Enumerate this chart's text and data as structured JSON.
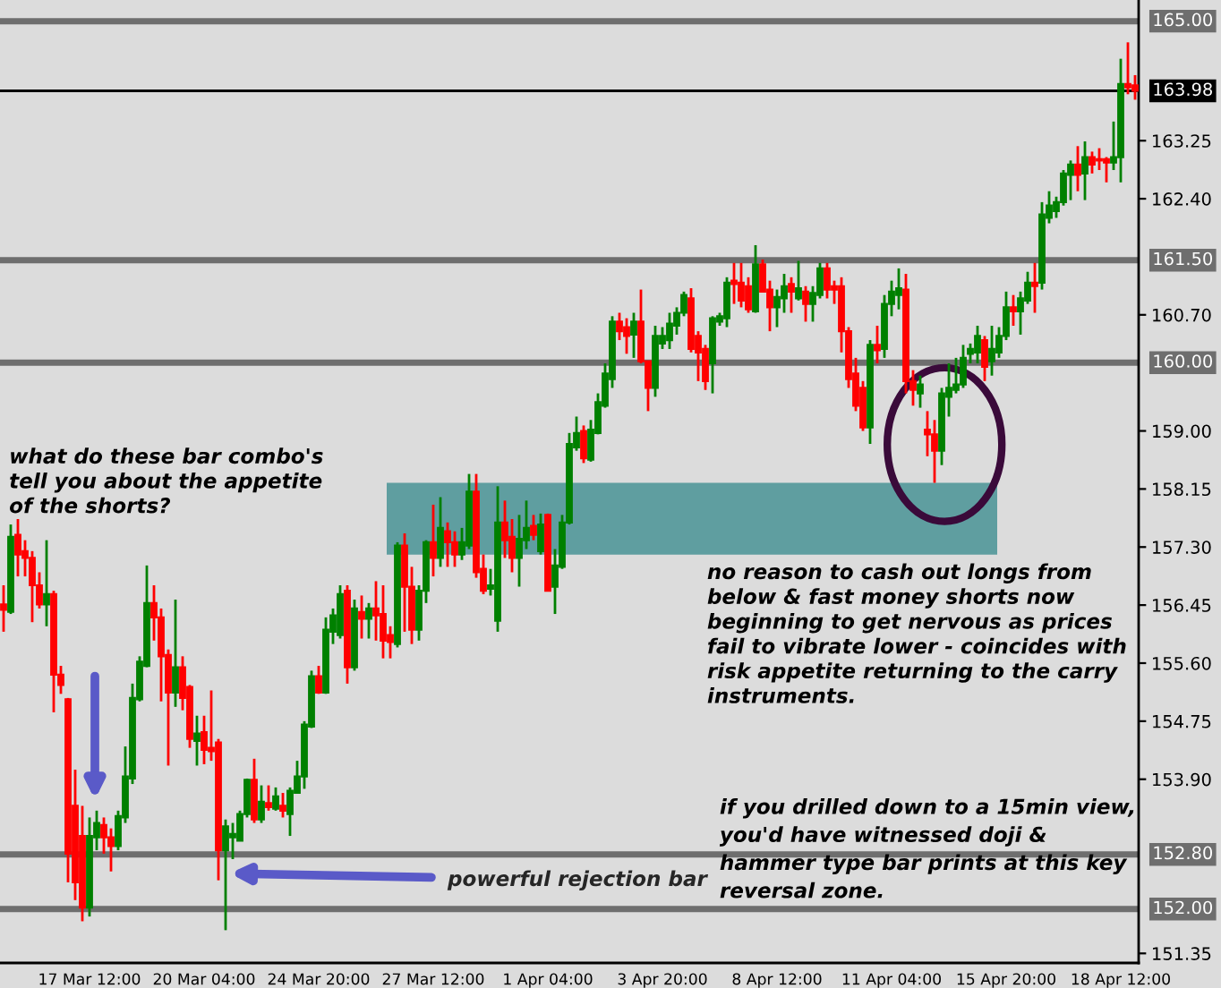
{
  "chart_data": {
    "type": "candlestick",
    "categories": [
      null,
      null,
      null,
      null,
      null,
      null,
      null,
      null,
      null,
      null,
      null,
      null,
      "17 Mar 12:00",
      null,
      null,
      null,
      null,
      null,
      null,
      null,
      null,
      null,
      null,
      null,
      null,
      null,
      null,
      null,
      "20 Mar 04:00",
      null,
      null,
      null,
      null,
      null,
      null,
      null,
      null,
      null,
      null,
      null,
      null,
      null,
      null,
      null,
      "24 Mar 20:00",
      null,
      null,
      null,
      null,
      null,
      null,
      null,
      null,
      null,
      null,
      null,
      null,
      null,
      null,
      null,
      "27 Mar 12:00",
      null,
      null,
      null,
      null,
      null,
      null,
      null,
      null,
      null,
      null,
      null,
      null,
      null,
      null,
      null,
      "1 Apr 04:00",
      null,
      null,
      null,
      null,
      null,
      null,
      null,
      null,
      null,
      null,
      null,
      null,
      null,
      null,
      null,
      "3 Apr 20:00",
      null,
      null,
      null,
      null,
      null,
      null,
      null,
      null,
      null,
      null,
      null,
      null,
      null,
      null,
      null,
      "8 Apr 12:00",
      null,
      null,
      null,
      null,
      null,
      null,
      null,
      null,
      null,
      null,
      null,
      null,
      null,
      null,
      null,
      "11 Apr 04:00",
      null,
      null,
      null,
      null,
      null,
      null,
      null,
      null,
      null,
      null,
      null,
      null,
      null,
      null,
      null,
      "15 Apr 20:00",
      null,
      null,
      null,
      null,
      null,
      null,
      null,
      null,
      null,
      null,
      null,
      null,
      null,
      null,
      null,
      "18 Apr 12:00",
      null,
      null
    ],
    "ohlc": [
      [
        156.46,
        156.74,
        156.06,
        156.38
      ],
      [
        156.35,
        157.63,
        156.32,
        157.45
      ],
      [
        157.48,
        157.71,
        156.87,
        157.19
      ],
      [
        157.24,
        157.4,
        156.87,
        157.14
      ],
      [
        157.14,
        157.24,
        156.2,
        156.74
      ],
      [
        156.74,
        156.93,
        156.4,
        156.46
      ],
      [
        156.46,
        157.4,
        156.14,
        156.61
      ],
      [
        156.61,
        156.66,
        154.88,
        155.43
      ],
      [
        155.43,
        155.56,
        155.15,
        155.28
      ],
      [
        155.07,
        155.09,
        152.39,
        152.81
      ],
      [
        153.51,
        154.04,
        152.13,
        152.39
      ],
      [
        153.07,
        153.51,
        151.82,
        152.02
      ],
      [
        152.02,
        153.34,
        151.89,
        153.07
      ],
      [
        153.05,
        153.44,
        152.86,
        153.26
      ],
      [
        153.23,
        153.34,
        152.81,
        153.05
      ],
      [
        153.05,
        153.18,
        152.55,
        152.92
      ],
      [
        152.92,
        153.44,
        152.86,
        153.36
      ],
      [
        153.34,
        154.38,
        153.26,
        153.94
      ],
      [
        153.91,
        155.3,
        153.83,
        155.09
      ],
      [
        155.07,
        155.7,
        155.04,
        155.62
      ],
      [
        155.56,
        157.03,
        155.54,
        156.48
      ],
      [
        156.48,
        156.74,
        155.93,
        156.27
      ],
      [
        156.27,
        156.4,
        155.04,
        155.7
      ],
      [
        155.72,
        155.8,
        154.1,
        155.17
      ],
      [
        155.17,
        156.53,
        154.96,
        155.54
      ],
      [
        155.54,
        155.7,
        154.91,
        155.09
      ],
      [
        155.25,
        155.28,
        154.36,
        154.49
      ],
      [
        154.46,
        154.83,
        154.1,
        154.57
      ],
      [
        154.59,
        154.83,
        154.12,
        154.33
      ],
      [
        154.36,
        155.2,
        154.17,
        154.31
      ],
      [
        154.44,
        154.49,
        152.42,
        152.86
      ],
      [
        152.86,
        153.31,
        151.69,
        153.21
      ],
      [
        153.05,
        153.26,
        152.73,
        153.1
      ],
      [
        153.0,
        153.44,
        153.0,
        153.39
      ],
      [
        153.39,
        153.91,
        153.34,
        153.89
      ],
      [
        153.89,
        154.2,
        153.26,
        153.31
      ],
      [
        153.31,
        153.81,
        153.26,
        153.57
      ],
      [
        153.55,
        153.81,
        153.44,
        153.49
      ],
      [
        153.47,
        153.78,
        153.44,
        153.65
      ],
      [
        153.51,
        153.7,
        153.34,
        153.44
      ],
      [
        153.39,
        153.78,
        153.07,
        153.73
      ],
      [
        153.7,
        154.17,
        153.7,
        153.94
      ],
      [
        153.94,
        154.75,
        153.76,
        154.7
      ],
      [
        154.67,
        155.49,
        154.65,
        155.41
      ],
      [
        155.41,
        155.56,
        155.15,
        155.17
      ],
      [
        155.17,
        156.27,
        155.15,
        156.09
      ],
      [
        156.06,
        156.4,
        155.88,
        156.3
      ],
      [
        156.01,
        156.74,
        155.96,
        156.61
      ],
      [
        156.66,
        156.74,
        155.3,
        155.54
      ],
      [
        155.54,
        156.53,
        155.49,
        156.4
      ],
      [
        156.35,
        156.59,
        155.96,
        156.25
      ],
      [
        156.25,
        156.48,
        155.96,
        156.4
      ],
      [
        156.4,
        156.8,
        155.93,
        156.3
      ],
      [
        156.32,
        156.74,
        155.67,
        155.93
      ],
      [
        156.01,
        156.14,
        155.67,
        155.91
      ],
      [
        155.88,
        157.37,
        155.83,
        157.32
      ],
      [
        157.32,
        157.5,
        156.06,
        156.72
      ],
      [
        156.72,
        157.01,
        155.88,
        156.09
      ],
      [
        156.09,
        156.74,
        155.93,
        156.66
      ],
      [
        156.66,
        157.4,
        156.48,
        157.37
      ],
      [
        157.37,
        157.92,
        156.87,
        157.14
      ],
      [
        157.14,
        158.03,
        157.01,
        157.58
      ],
      [
        157.53,
        157.66,
        157.01,
        157.37
      ],
      [
        157.37,
        157.53,
        157.01,
        157.19
      ],
      [
        157.19,
        157.58,
        157.11,
        157.37
      ],
      [
        157.32,
        158.37,
        157.27,
        158.11
      ],
      [
        158.11,
        158.37,
        156.85,
        156.93
      ],
      [
        156.98,
        157.19,
        156.61,
        156.66
      ],
      [
        156.69,
        156.98,
        156.59,
        156.74
      ],
      [
        156.22,
        158.19,
        156.06,
        157.66
      ],
      [
        157.66,
        157.98,
        157.14,
        157.4
      ],
      [
        157.45,
        157.71,
        156.93,
        157.14
      ],
      [
        157.14,
        157.77,
        156.72,
        157.42
      ],
      [
        157.4,
        157.98,
        157.27,
        157.58
      ],
      [
        157.61,
        157.77,
        157.4,
        157.48
      ],
      [
        157.24,
        157.79,
        157.19,
        157.63
      ],
      [
        157.77,
        157.79,
        156.66,
        156.66
      ],
      [
        156.72,
        157.27,
        156.32,
        157.03
      ],
      [
        157.01,
        157.77,
        156.98,
        157.66
      ],
      [
        157.66,
        158.97,
        157.63,
        158.81
      ],
      [
        158.76,
        159.21,
        158.71,
        158.97
      ],
      [
        159.0,
        159.08,
        158.53,
        158.6
      ],
      [
        158.58,
        159.16,
        158.55,
        159.02
      ],
      [
        158.97,
        159.55,
        158.95,
        159.42
      ],
      [
        159.37,
        159.99,
        159.34,
        159.84
      ],
      [
        159.76,
        160.68,
        159.63,
        160.6
      ],
      [
        160.6,
        160.73,
        160.33,
        160.46
      ],
      [
        160.52,
        160.65,
        160.13,
        160.39
      ],
      [
        160.41,
        160.73,
        160.07,
        160.6
      ],
      [
        160.6,
        161.07,
        159.99,
        160.02
      ],
      [
        160.02,
        160.02,
        159.29,
        159.63
      ],
      [
        159.63,
        160.54,
        159.5,
        160.39
      ],
      [
        160.28,
        160.52,
        160.2,
        160.39
      ],
      [
        160.33,
        160.73,
        160.2,
        160.57
      ],
      [
        160.54,
        160.81,
        160.41,
        160.73
      ],
      [
        160.73,
        161.04,
        160.68,
        160.99
      ],
      [
        160.94,
        161.09,
        160.15,
        160.2
      ],
      [
        160.39,
        160.46,
        159.73,
        160.15
      ],
      [
        160.2,
        160.26,
        159.6,
        159.73
      ],
      [
        159.99,
        160.68,
        159.55,
        160.65
      ],
      [
        160.6,
        160.73,
        160.54,
        160.68
      ],
      [
        160.65,
        161.25,
        160.52,
        161.17
      ],
      [
        161.2,
        161.46,
        160.86,
        161.15
      ],
      [
        161.17,
        161.46,
        160.81,
        160.91
      ],
      [
        161.12,
        161.25,
        160.73,
        160.78
      ],
      [
        160.75,
        161.72,
        160.73,
        161.44
      ],
      [
        161.44,
        161.51,
        161.04,
        161.04
      ],
      [
        161.07,
        161.2,
        160.46,
        160.81
      ],
      [
        160.81,
        161.07,
        160.52,
        160.96
      ],
      [
        160.94,
        161.3,
        160.73,
        161.12
      ],
      [
        161.15,
        161.25,
        160.73,
        161.04
      ],
      [
        160.94,
        161.49,
        160.91,
        161.09
      ],
      [
        161.04,
        161.12,
        160.6,
        160.86
      ],
      [
        160.86,
        161.12,
        160.6,
        161.02
      ],
      [
        160.99,
        161.46,
        160.94,
        161.38
      ],
      [
        161.38,
        161.46,
        160.94,
        161.07
      ],
      [
        161.12,
        161.2,
        160.86,
        161.07
      ],
      [
        161.12,
        161.25,
        160.15,
        160.46
      ],
      [
        160.46,
        160.52,
        159.63,
        159.76
      ],
      [
        159.84,
        160.07,
        159.29,
        159.37
      ],
      [
        159.63,
        159.73,
        159.0,
        159.05
      ],
      [
        159.05,
        160.33,
        158.81,
        160.26
      ],
      [
        160.26,
        160.54,
        159.99,
        160.18
      ],
      [
        160.2,
        160.99,
        160.07,
        160.86
      ],
      [
        160.86,
        161.2,
        160.68,
        161.04
      ],
      [
        160.99,
        161.38,
        160.78,
        161.09
      ],
      [
        161.07,
        161.3,
        159.55,
        159.73
      ],
      [
        159.73,
        159.89,
        159.37,
        159.6
      ],
      [
        159.55,
        159.81,
        159.34,
        159.68
      ],
      [
        159.02,
        159.29,
        158.63,
        158.95
      ],
      [
        158.95,
        159.16,
        158.24,
        158.71
      ],
      [
        158.71,
        159.63,
        158.5,
        159.55
      ],
      [
        159.5,
        159.99,
        159.21,
        159.63
      ],
      [
        159.6,
        160.07,
        159.55,
        159.68
      ],
      [
        159.68,
        160.26,
        159.63,
        160.07
      ],
      [
        160.13,
        160.28,
        159.99,
        160.2
      ],
      [
        160.15,
        160.54,
        159.99,
        160.39
      ],
      [
        160.33,
        160.39,
        159.73,
        159.94
      ],
      [
        160.02,
        160.54,
        159.81,
        160.2
      ],
      [
        160.15,
        160.52,
        160.07,
        160.39
      ],
      [
        160.39,
        161.04,
        160.33,
        160.81
      ],
      [
        160.81,
        160.99,
        160.54,
        160.75
      ],
      [
        160.75,
        161.04,
        160.41,
        160.94
      ],
      [
        160.91,
        161.33,
        160.86,
        161.17
      ],
      [
        161.17,
        161.46,
        160.73,
        161.12
      ],
      [
        161.17,
        162.35,
        161.07,
        162.17
      ],
      [
        162.12,
        162.51,
        162.04,
        162.3
      ],
      [
        162.22,
        162.43,
        162.12,
        162.35
      ],
      [
        162.35,
        162.82,
        162.3,
        162.77
      ],
      [
        162.75,
        162.96,
        162.38,
        162.9
      ],
      [
        162.9,
        163.17,
        162.51,
        162.75
      ],
      [
        162.77,
        163.24,
        162.38,
        163.01
      ],
      [
        163.01,
        163.09,
        162.77,
        162.9
      ],
      [
        162.98,
        163.14,
        162.82,
        162.96
      ],
      [
        162.98,
        163.01,
        162.64,
        162.93
      ],
      [
        162.93,
        163.53,
        162.82,
        163.01
      ],
      [
        163.01,
        164.45,
        162.64,
        164.08
      ],
      [
        164.08,
        164.69,
        163.93,
        164.03
      ],
      [
        164.06,
        164.21,
        163.85,
        163.98
      ]
    ],
    "ylim": [
      151.21,
      165.31
    ],
    "yticks": [
      {
        "value": 151.35,
        "label": "151.35"
      },
      {
        "value": 153.9,
        "label": "153.90"
      },
      {
        "value": 154.75,
        "label": "154.75"
      },
      {
        "value": 155.6,
        "label": "155.60"
      },
      {
        "value": 156.45,
        "label": "156.45"
      },
      {
        "value": 157.3,
        "label": "157.30"
      },
      {
        "value": 158.15,
        "label": "158.15"
      },
      {
        "value": 159.0,
        "label": "159.00"
      },
      {
        "value": 160.7,
        "label": "160.70"
      },
      {
        "value": 162.4,
        "label": "162.40"
      },
      {
        "value": 163.25,
        "label": "163.25"
      }
    ],
    "ref_lines": [
      {
        "axis": "y",
        "value": 165.0,
        "label": "165.00",
        "color": "#6e6e6e"
      },
      {
        "axis": "y",
        "value": 163.98,
        "label": "163.98",
        "color": "#000000"
      },
      {
        "axis": "y",
        "value": 161.5,
        "label": "161.50",
        "color": "#6e6e6e"
      },
      {
        "axis": "y",
        "value": 160.0,
        "label": "160.00",
        "color": "#6e6e6e"
      },
      {
        "axis": "y",
        "value": 152.8,
        "label": "152.80",
        "color": "#6e6e6e"
      },
      {
        "axis": "y",
        "value": 152.0,
        "label": "152.00",
        "color": "#6e6e6e"
      }
    ],
    "bands": [
      {
        "axis": "y",
        "from": 157.19,
        "to": 158.24,
        "color": "#5f9ea0"
      }
    ],
    "annotations": [
      "what do these bar combo's\ntell you about the appetite\nof the shorts?",
      "no reason to cash out longs from\nbelow & fast money shorts now\nbeginning to get nervous as prices\nfail to vibrate lower - coincides with\nrisk appetite returning to the carry\ninstruments.",
      "if you drilled down to a 15min view,\nyou'd have witnessed doji &\nhammer type bar prints at this key\nreversal zone.",
      "powerful rejection bar"
    ],
    "grid": false
  }
}
